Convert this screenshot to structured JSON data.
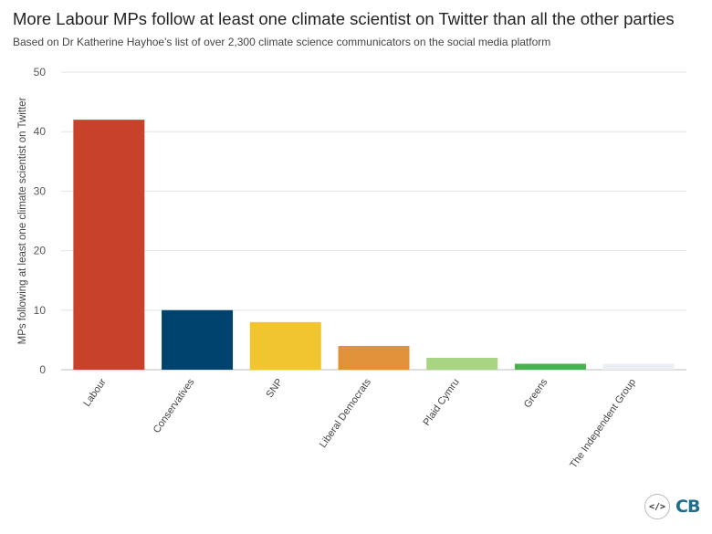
{
  "header": {
    "title": "More Labour MPs follow at least one climate scientist on Twitter than all the other parties",
    "subtitle": "Based on Dr Katherine Hayhoe's list of over 2,300 climate science communicators on the social media platform"
  },
  "chart_data": {
    "type": "bar",
    "title": "More Labour MPs follow at least one climate scientist on Twitter than all the other parties",
    "subtitle": "Based on Dr Katherine Hayhoe's list of over 2,300 climate science communicators on the social media platform",
    "xlabel": "",
    "ylabel": "MPs following at least one climate scientist on Twitter",
    "categories": [
      "Labour",
      "Conservatives",
      "SNP",
      "Liberal Democrats",
      "Plaid Cymru",
      "Greens",
      "The Independent Group"
    ],
    "values": [
      42,
      10,
      8,
      4,
      2,
      1,
      1
    ],
    "colors": [
      "#c8412a",
      "#00426e",
      "#f0c530",
      "#e0913a",
      "#a8d581",
      "#4caf50",
      "#eceff4"
    ],
    "ylim": [
      0,
      50
    ],
    "yticks": [
      0,
      10,
      20,
      30,
      40,
      50
    ],
    "grid": true,
    "legend": "none"
  },
  "footer": {
    "logo_code_icon": "code-icon",
    "logo_text": "CB"
  }
}
